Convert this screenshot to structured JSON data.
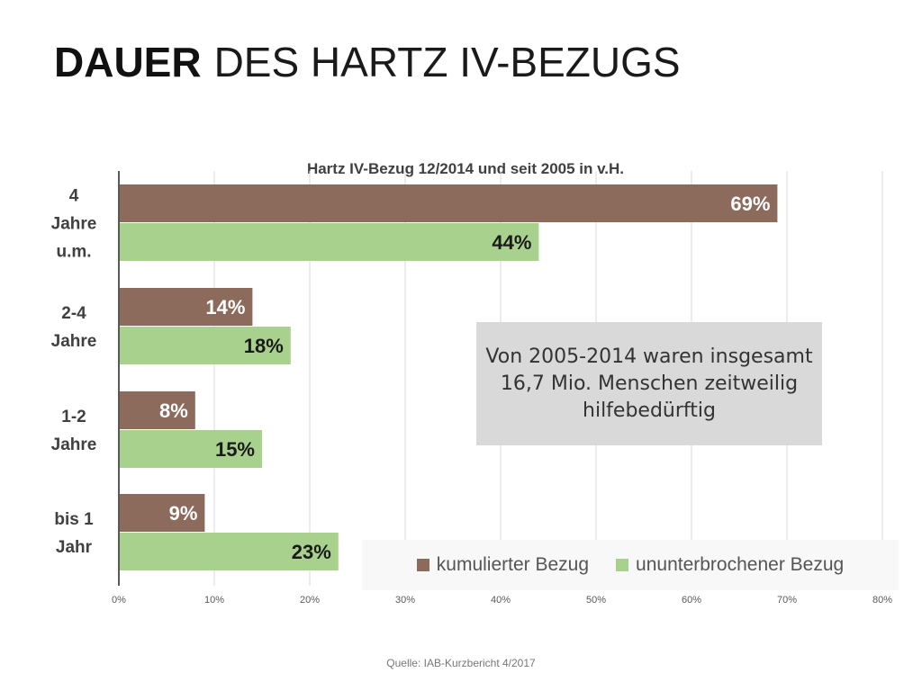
{
  "slide": {
    "title_bold": "DAUER",
    "title_rest": "DES HARTZ IV-BEZUGS",
    "source": "Quelle: IAB-Kurzbericht 4/2017"
  },
  "callout": {
    "text": "Von 2005-2014 waren insgesamt 16,7 Mio. Menschen zeitweilig hilfebedürftig"
  },
  "chart_data": {
    "type": "bar",
    "orientation": "horizontal",
    "title": "Hartz IV-Bezug 12/2014 und seit 2005 in v.H.",
    "categories": [
      [
        "4",
        "Jahre",
        "u.m."
      ],
      [
        "2-4",
        "Jahre"
      ],
      [
        "1-2",
        "Jahre"
      ],
      [
        "bis 1",
        "Jahr"
      ]
    ],
    "series": [
      {
        "name": "kumulierter Bezug",
        "color": "#8c6b5d",
        "values": [
          69,
          14,
          8,
          9
        ],
        "labels": [
          "69%",
          "14%",
          "8%",
          "9%"
        ]
      },
      {
        "name": "ununterbrochener Bezug",
        "color": "#a9d18e",
        "values": [
          44,
          18,
          15,
          23
        ],
        "labels": [
          "44%",
          "18%",
          "15%",
          "23%"
        ]
      }
    ],
    "xlim": [
      0,
      80
    ],
    "xticks": [
      0,
      10,
      20,
      30,
      40,
      50,
      60,
      70,
      80
    ],
    "xtick_labels": [
      "0%",
      "10%",
      "20%",
      "30%",
      "40%",
      "50%",
      "60%",
      "70%",
      "80%"
    ],
    "grid": true,
    "legend_position": "bottom-right"
  }
}
